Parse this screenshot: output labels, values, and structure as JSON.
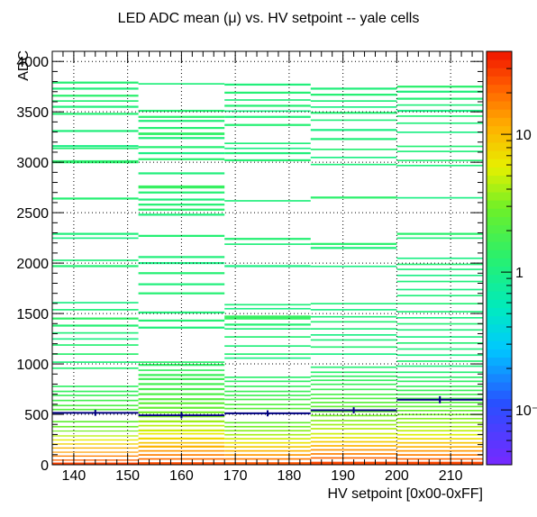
{
  "chart_data": {
    "type": "heatmap",
    "title": "LED ADC mean (μ) vs. HV setpoint -- yale cells",
    "xlabel": "HV setpoint [0x00-0xFF]",
    "ylabel": "ADC",
    "xlim": [
      136,
      216
    ],
    "ylim": [
      0,
      4100
    ],
    "x_ticks": [
      140,
      150,
      160,
      170,
      180,
      190,
      200,
      210
    ],
    "y_ticks": [
      0,
      500,
      1000,
      1500,
      2000,
      2500,
      3000,
      3500,
      4000
    ],
    "z_ticks": [
      {
        "value": 0.1,
        "label": "10⁻¹"
      },
      {
        "value": 1,
        "label": "1"
      },
      {
        "value": 10,
        "label": "10"
      }
    ],
    "z_scale": "log",
    "zlim": [
      0.04,
      40
    ],
    "grid": true,
    "x_bins": [
      136,
      152,
      168,
      184,
      200,
      216
    ],
    "profile": {
      "x": [
        144,
        160,
        176,
        192,
        208
      ],
      "y": [
        515,
        490,
        510,
        540,
        645
      ],
      "yerr": [
        30,
        30,
        30,
        30,
        35
      ]
    },
    "cells": [
      [
        [
          3780,
          3800,
          1.2
        ],
        [
          3720,
          3740,
          1.1
        ],
        [
          3650,
          3670,
          1.3
        ],
        [
          3600,
          3615,
          1.2
        ],
        [
          3540,
          3560,
          1.1
        ],
        [
          3470,
          3490,
          1.2
        ],
        [
          3300,
          3320,
          1.1
        ],
        [
          3150,
          3170,
          1.0
        ],
        [
          3130,
          3145,
          1.2
        ],
        [
          2990,
          3020,
          1.3
        ],
        [
          2630,
          2650,
          1.2
        ],
        [
          2280,
          2300,
          1.1
        ],
        [
          2240,
          2255,
          1.0
        ],
        [
          2020,
          2035,
          1.1
        ],
        [
          1960,
          1980,
          1.2
        ],
        [
          1600,
          1615,
          1.0
        ],
        [
          1530,
          1545,
          1.1
        ],
        [
          1440,
          1460,
          1.4
        ],
        [
          1370,
          1390,
          1.2
        ],
        [
          1300,
          1315,
          1.1
        ],
        [
          1240,
          1255,
          1.0
        ],
        [
          1180,
          1195,
          1.2
        ],
        [
          1090,
          1105,
          1.3
        ],
        [
          1010,
          1025,
          1.1
        ],
        [
          950,
          965,
          1.2
        ],
        [
          770,
          785,
          1.4
        ],
        [
          720,
          735,
          1.5
        ],
        [
          680,
          695,
          1.6
        ],
        [
          630,
          645,
          1.8
        ],
        [
          580,
          595,
          2.0
        ],
        [
          540,
          555,
          2.2
        ],
        [
          420,
          435,
          2.5
        ],
        [
          370,
          385,
          2.8
        ],
        [
          330,
          340,
          3.0
        ],
        [
          280,
          292,
          4.5
        ],
        [
          240,
          252,
          6.0
        ],
        [
          200,
          212,
          8.0
        ],
        [
          160,
          172,
          11.0
        ],
        [
          120,
          130,
          13.0
        ],
        [
          80,
          92,
          17.0
        ],
        [
          40,
          52,
          22.0
        ],
        [
          0,
          22,
          28.0
        ]
      ],
      [
        [
          3770,
          3785,
          1.1
        ],
        [
          3500,
          3520,
          1.2
        ],
        [
          3440,
          3460,
          1.3
        ],
        [
          3400,
          3420,
          1.1
        ],
        [
          3330,
          3350,
          1.2
        ],
        [
          3270,
          3295,
          1.4
        ],
        [
          3230,
          3250,
          1.1
        ],
        [
          3140,
          3160,
          1.2
        ],
        [
          3080,
          3100,
          1.0
        ],
        [
          3020,
          3040,
          1.3
        ],
        [
          2880,
          2900,
          1.1
        ],
        [
          2740,
          2770,
          1.5
        ],
        [
          2690,
          2710,
          1.2
        ],
        [
          2620,
          2640,
          1.1
        ],
        [
          2570,
          2590,
          1.2
        ],
        [
          2520,
          2540,
          1.3
        ],
        [
          2470,
          2490,
          1.1
        ],
        [
          2260,
          2280,
          1.2
        ],
        [
          2050,
          2070,
          1.1
        ],
        [
          1990,
          2010,
          1.0
        ],
        [
          1890,
          1910,
          1.2
        ],
        [
          1780,
          1800,
          1.1
        ],
        [
          1690,
          1710,
          1.2
        ],
        [
          1500,
          1520,
          1.1
        ],
        [
          1420,
          1440,
          1.2
        ],
        [
          1350,
          1370,
          1.1
        ],
        [
          1010,
          1025,
          1.3
        ],
        [
          980,
          1000,
          1.4
        ],
        [
          930,
          945,
          1.5
        ],
        [
          880,
          900,
          1.6
        ],
        [
          840,
          860,
          1.7
        ],
        [
          790,
          810,
          1.8
        ],
        [
          740,
          760,
          1.9
        ],
        [
          690,
          710,
          2.0
        ],
        [
          640,
          660,
          2.2
        ],
        [
          600,
          620,
          2.4
        ],
        [
          555,
          575,
          2.6
        ],
        [
          510,
          530,
          3.0
        ],
        [
          470,
          490,
          3.4
        ],
        [
          420,
          440,
          3.8
        ],
        [
          380,
          395,
          4.5
        ],
        [
          330,
          350,
          5.0
        ],
        [
          300,
          315,
          6.0
        ],
        [
          250,
          270,
          7.5
        ],
        [
          210,
          225,
          9.0
        ],
        [
          170,
          190,
          11.0
        ],
        [
          130,
          145,
          14.0
        ],
        [
          90,
          105,
          17.0
        ],
        [
          50,
          65,
          20.0
        ],
        [
          0,
          25,
          26.0
        ]
      ],
      [
        [
          3760,
          3780,
          1.1
        ],
        [
          3680,
          3700,
          1.2
        ],
        [
          3610,
          3625,
          1.1
        ],
        [
          3550,
          3570,
          1.2
        ],
        [
          3500,
          3515,
          1.0
        ],
        [
          3440,
          3460,
          1.1
        ],
        [
          3360,
          3380,
          1.2
        ],
        [
          3180,
          3195,
          1.1
        ],
        [
          3130,
          3145,
          1.0
        ],
        [
          3080,
          3100,
          1.1
        ],
        [
          3010,
          3030,
          1.2
        ],
        [
          2610,
          2625,
          1.1
        ],
        [
          2230,
          2250,
          1.2
        ],
        [
          2180,
          2195,
          1.1
        ],
        [
          1960,
          1980,
          1.0
        ],
        [
          1580,
          1595,
          1.1
        ],
        [
          1540,
          1555,
          1.0
        ],
        [
          1440,
          1480,
          1.5
        ],
        [
          1380,
          1400,
          1.2
        ],
        [
          1340,
          1355,
          1.1
        ],
        [
          1260,
          1275,
          1.2
        ],
        [
          1170,
          1185,
          1.1
        ],
        [
          1090,
          1105,
          1.2
        ],
        [
          1050,
          1065,
          1.0
        ],
        [
          860,
          875,
          1.3
        ],
        [
          820,
          835,
          1.4
        ],
        [
          770,
          785,
          1.5
        ],
        [
          720,
          735,
          1.6
        ],
        [
          680,
          695,
          1.7
        ],
        [
          640,
          655,
          1.9
        ],
        [
          590,
          605,
          2.1
        ],
        [
          550,
          565,
          2.3
        ],
        [
          410,
          425,
          2.6
        ],
        [
          370,
          385,
          3.0
        ],
        [
          330,
          345,
          3.4
        ],
        [
          290,
          305,
          4.0
        ],
        [
          250,
          265,
          5.0
        ],
        [
          210,
          225,
          6.5
        ],
        [
          170,
          185,
          8.5
        ],
        [
          130,
          145,
          11.0
        ],
        [
          90,
          105,
          14.0
        ],
        [
          50,
          65,
          18.0
        ],
        [
          0,
          25,
          24.0
        ]
      ],
      [
        [
          3720,
          3740,
          1.1
        ],
        [
          3660,
          3680,
          1.2
        ],
        [
          3600,
          3615,
          1.1
        ],
        [
          3540,
          3555,
          1.0
        ],
        [
          3480,
          3500,
          1.2
        ],
        [
          3410,
          3425,
          1.1
        ],
        [
          3310,
          3330,
          1.0
        ],
        [
          3220,
          3240,
          1.1
        ],
        [
          3120,
          3135,
          1.2
        ],
        [
          3040,
          3055,
          1.0
        ],
        [
          2970,
          2985,
          1.1
        ],
        [
          2640,
          2660,
          1.3
        ],
        [
          2180,
          2200,
          1.3
        ],
        [
          2140,
          2160,
          1.1
        ],
        [
          1960,
          1975,
          1.0
        ],
        [
          1590,
          1605,
          1.1
        ],
        [
          1530,
          1545,
          1.0
        ],
        [
          1460,
          1475,
          1.1
        ],
        [
          1410,
          1425,
          1.2
        ],
        [
          1340,
          1355,
          1.1
        ],
        [
          1280,
          1295,
          1.0
        ],
        [
          1230,
          1245,
          1.1
        ],
        [
          1160,
          1175,
          1.2
        ],
        [
          1090,
          1105,
          1.0
        ],
        [
          960,
          975,
          1.2
        ],
        [
          910,
          925,
          1.3
        ],
        [
          870,
          885,
          1.4
        ],
        [
          830,
          845,
          1.5
        ],
        [
          790,
          805,
          1.6
        ],
        [
          740,
          755,
          1.7
        ],
        [
          690,
          705,
          1.9
        ],
        [
          650,
          665,
          2.1
        ],
        [
          610,
          625,
          2.3
        ],
        [
          570,
          585,
          2.5
        ],
        [
          520,
          535,
          2.8
        ],
        [
          480,
          495,
          3.0
        ],
        [
          430,
          445,
          3.4
        ],
        [
          390,
          405,
          3.8
        ],
        [
          350,
          365,
          4.3
        ],
        [
          300,
          315,
          5.0
        ],
        [
          260,
          275,
          6.5
        ],
        [
          220,
          235,
          8.5
        ],
        [
          180,
          195,
          11.0
        ],
        [
          140,
          155,
          14.0
        ],
        [
          100,
          115,
          17.0
        ],
        [
          60,
          75,
          21.0
        ],
        [
          0,
          30,
          27.0
        ]
      ],
      [
        [
          3740,
          3760,
          1.3
        ],
        [
          3690,
          3710,
          1.1
        ],
        [
          3620,
          3640,
          1.2
        ],
        [
          3560,
          3575,
          1.1
        ],
        [
          3500,
          3520,
          1.0
        ],
        [
          3450,
          3465,
          1.2
        ],
        [
          3380,
          3395,
          1.1
        ],
        [
          3290,
          3305,
          1.0
        ],
        [
          3150,
          3165,
          1.2
        ],
        [
          3100,
          3115,
          1.1
        ],
        [
          3010,
          3025,
          1.2
        ],
        [
          2960,
          2975,
          1.1
        ],
        [
          2640,
          2655,
          1.0
        ],
        [
          2280,
          2300,
          1.3
        ],
        [
          2240,
          2255,
          1.1
        ],
        [
          2040,
          2055,
          1.0
        ],
        [
          1980,
          1995,
          1.2
        ],
        [
          1930,
          1945,
          1.1
        ],
        [
          1870,
          1885,
          1.0
        ],
        [
          1810,
          1825,
          1.1
        ],
        [
          1730,
          1745,
          1.0
        ],
        [
          1670,
          1685,
          1.1
        ],
        [
          1590,
          1605,
          1.2
        ],
        [
          1510,
          1525,
          1.1
        ],
        [
          1450,
          1465,
          1.0
        ],
        [
          1390,
          1405,
          1.2
        ],
        [
          1330,
          1345,
          1.1
        ],
        [
          1260,
          1275,
          1.0
        ],
        [
          1200,
          1215,
          1.2
        ],
        [
          1140,
          1155,
          1.1
        ],
        [
          1080,
          1095,
          1.0
        ],
        [
          1020,
          1035,
          1.2
        ],
        [
          970,
          985,
          1.1
        ],
        [
          910,
          925,
          1.2
        ],
        [
          860,
          875,
          1.3
        ],
        [
          820,
          835,
          1.4
        ],
        [
          770,
          785,
          1.5
        ],
        [
          730,
          745,
          1.6
        ],
        [
          690,
          705,
          1.8
        ],
        [
          650,
          665,
          2.0
        ],
        [
          610,
          625,
          2.2
        ],
        [
          570,
          585,
          2.4
        ],
        [
          530,
          545,
          2.7
        ],
        [
          490,
          505,
          3.0
        ],
        [
          450,
          465,
          3.3
        ],
        [
          410,
          425,
          3.7
        ],
        [
          370,
          385,
          4.1
        ],
        [
          330,
          345,
          4.6
        ],
        [
          290,
          305,
          5.5
        ],
        [
          250,
          265,
          7.0
        ],
        [
          210,
          225,
          9.0
        ],
        [
          170,
          185,
          11.0
        ],
        [
          130,
          145,
          14.0
        ],
        [
          90,
          105,
          17.0
        ],
        [
          50,
          65,
          21.0
        ],
        [
          0,
          30,
          27.0
        ]
      ]
    ]
  }
}
